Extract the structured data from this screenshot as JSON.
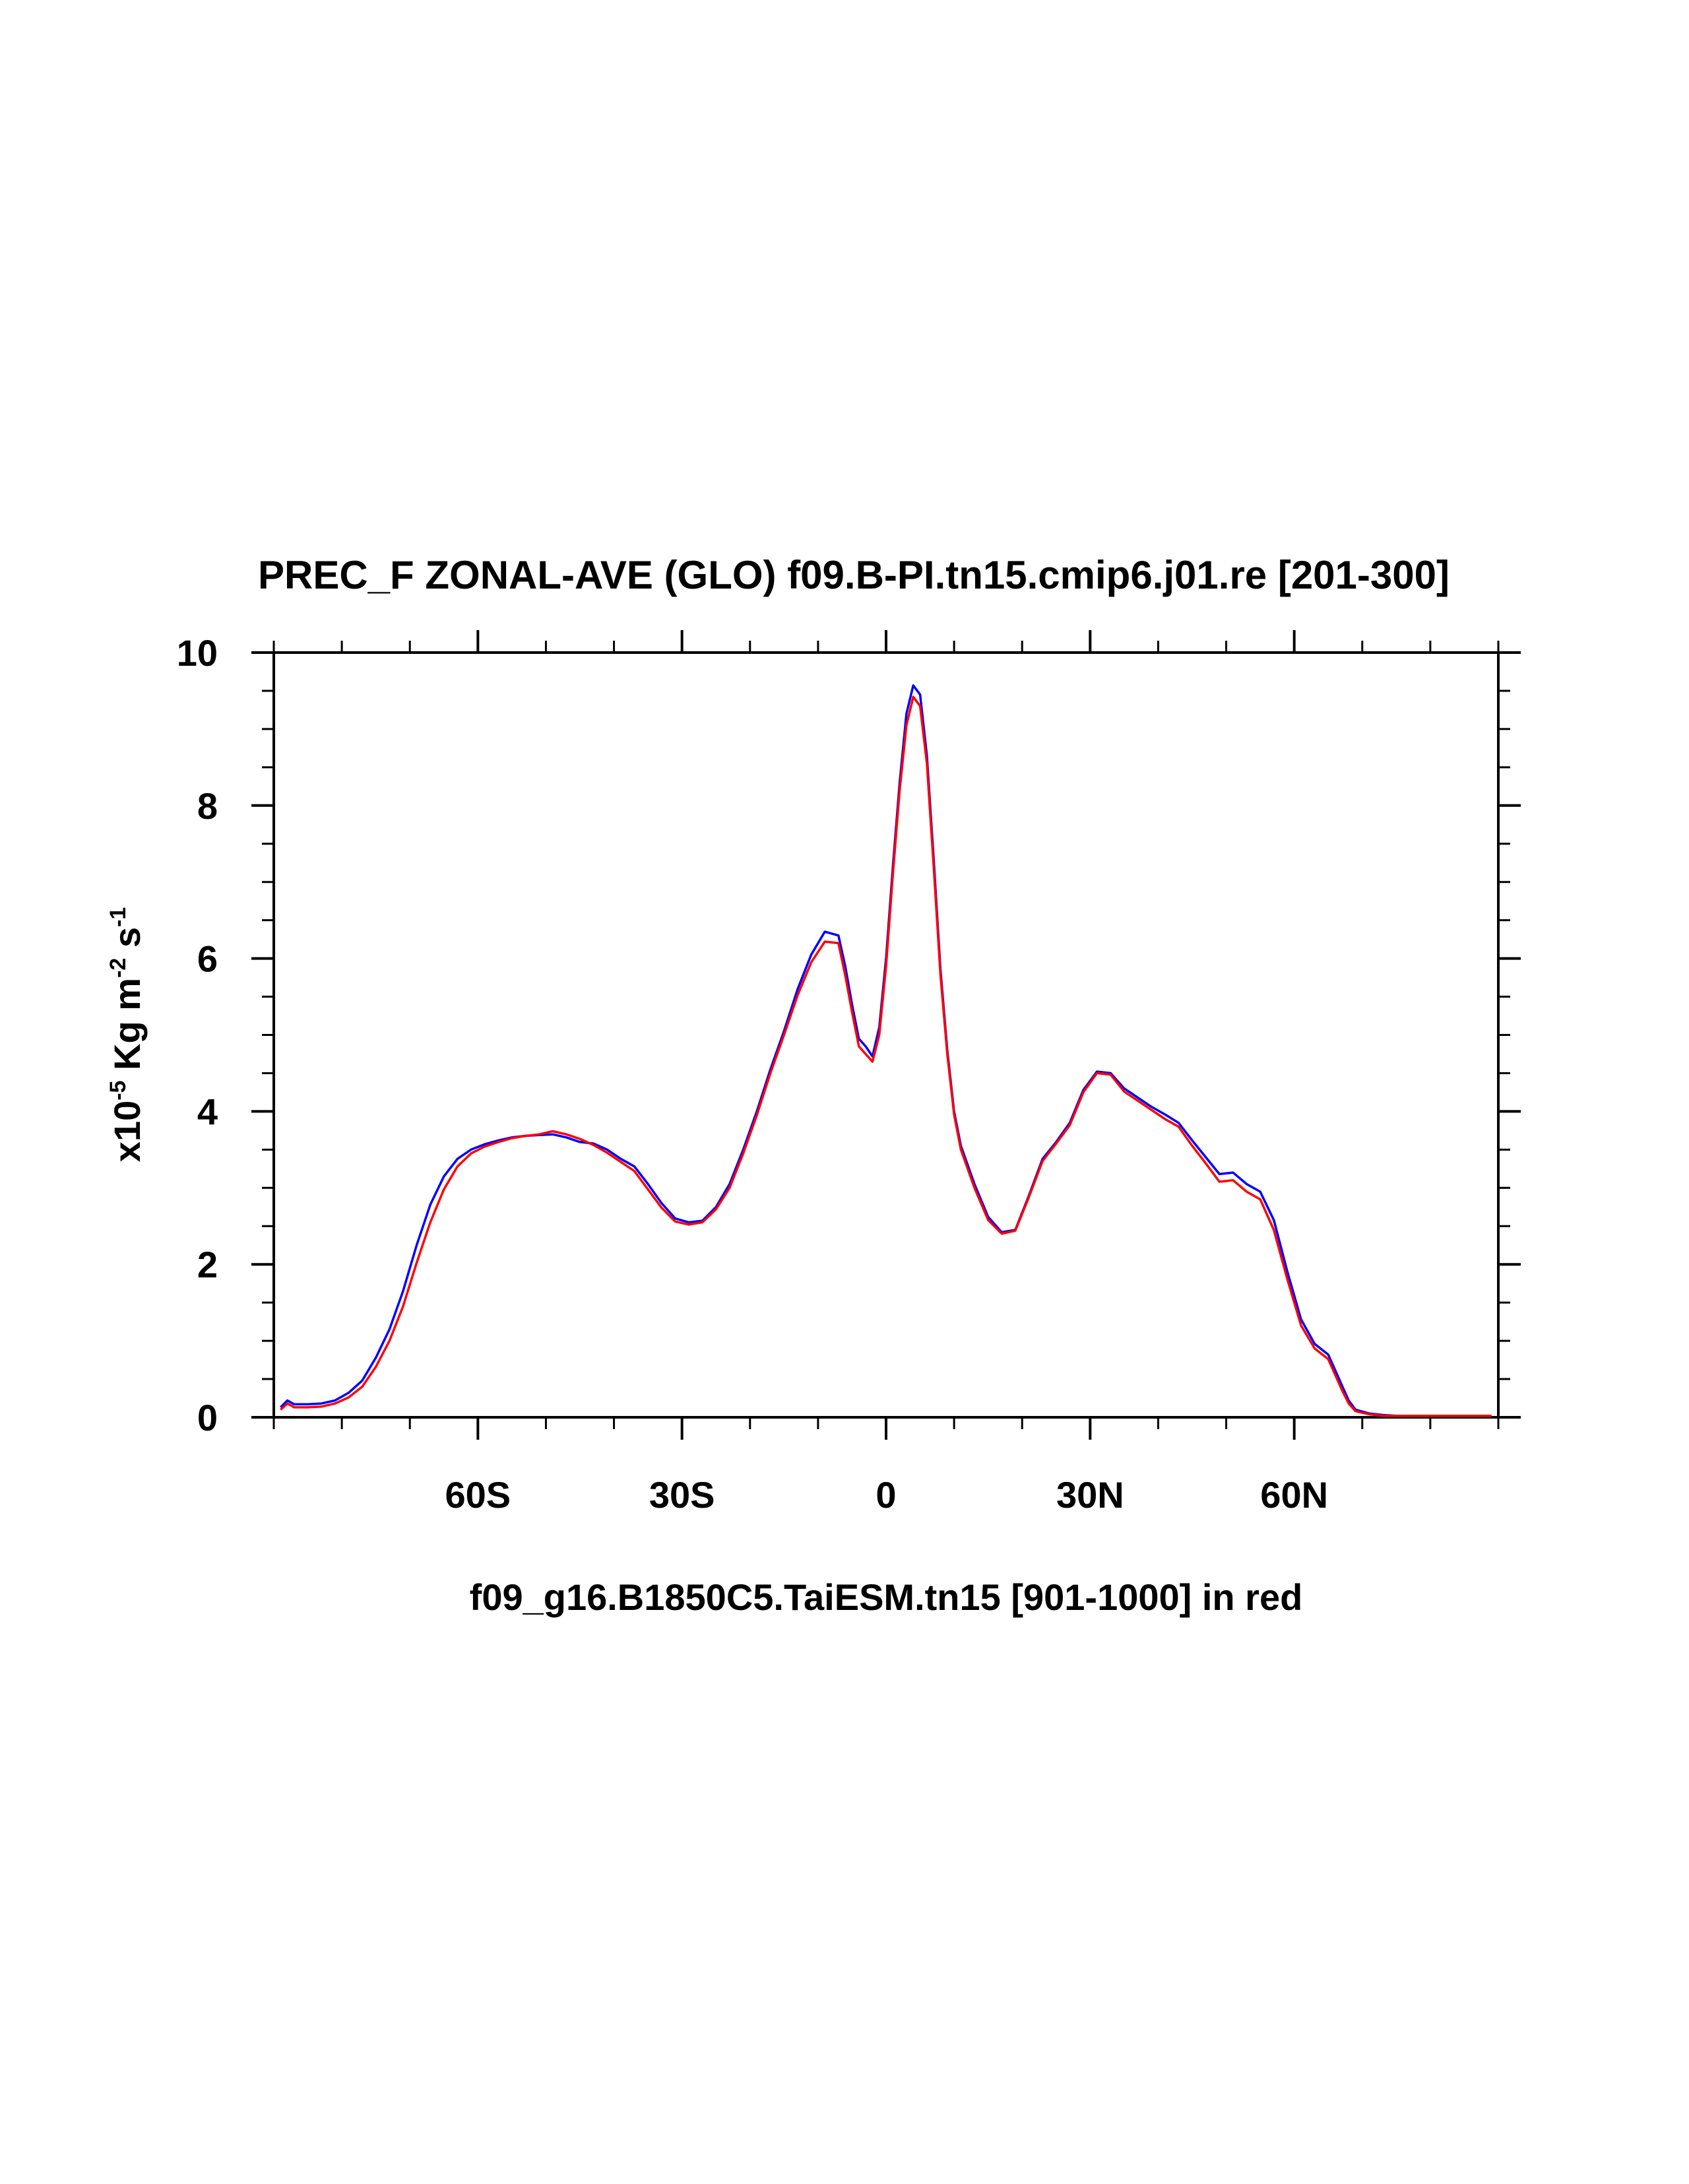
{
  "chart_data": {
    "type": "line",
    "title": "PREC_F ZONAL-AVE (GLO) f09.B-PI.tn15.cmip6.j01.re [201-300]",
    "xlabel": "f09_g16.B1850C5.TaiESM.tn15 [901-1000] in red",
    "ylabel": {
      "prefix": "x10",
      "exp1": "-5",
      "mid": " Kg m",
      "exp2": "-2",
      "mid2": " s",
      "exp3": "-1"
    },
    "xlim": [
      -90,
      90
    ],
    "ylim": [
      0,
      10
    ],
    "x_ticks": [
      {
        "value": -60,
        "label": "60S"
      },
      {
        "value": -30,
        "label": "30S"
      },
      {
        "value": 0,
        "label": "0"
      },
      {
        "value": 30,
        "label": "30N"
      },
      {
        "value": 60,
        "label": "60N"
      }
    ],
    "y_ticks": [
      {
        "value": 0,
        "label": "0"
      },
      {
        "value": 2,
        "label": "2"
      },
      {
        "value": 4,
        "label": "4"
      },
      {
        "value": 6,
        "label": "6"
      },
      {
        "value": 8,
        "label": "8"
      },
      {
        "value": 10,
        "label": "10"
      }
    ],
    "grid": false,
    "series": [
      {
        "color": "#0000ff",
        "x": [
          -89,
          -88,
          -87,
          -85,
          -83,
          -81,
          -79,
          -77,
          -75,
          -73,
          -71,
          -69,
          -67,
          -65,
          -63,
          -61,
          -59,
          -57,
          -55,
          -53,
          -51,
          -49,
          -47,
          -45,
          -43,
          -41,
          -39,
          -37,
          -35,
          -33,
          -31,
          -29,
          -27,
          -25,
          -23,
          -21,
          -19,
          -17,
          -15,
          -13,
          -11,
          -9,
          -7,
          -6,
          -5,
          -4,
          -3,
          -2,
          -1,
          0,
          1,
          2,
          3,
          4,
          5,
          6,
          7,
          8,
          9,
          10,
          11,
          12,
          13,
          15,
          17,
          19,
          21,
          23,
          25,
          27,
          29,
          31,
          33,
          35,
          37,
          39,
          41,
          43,
          45,
          47,
          49,
          51,
          53,
          55,
          57,
          59,
          61,
          63,
          65,
          66,
          67,
          68,
          69,
          71,
          73,
          75,
          77,
          79,
          81,
          83,
          85,
          87,
          89
        ],
        "y": [
          0.13,
          0.22,
          0.17,
          0.17,
          0.18,
          0.22,
          0.32,
          0.48,
          0.78,
          1.15,
          1.65,
          2.25,
          2.78,
          3.15,
          3.38,
          3.5,
          3.57,
          3.62,
          3.66,
          3.68,
          3.69,
          3.7,
          3.66,
          3.6,
          3.58,
          3.5,
          3.38,
          3.28,
          3.05,
          2.8,
          2.6,
          2.55,
          2.57,
          2.75,
          3.05,
          3.5,
          4.0,
          4.55,
          5.05,
          5.6,
          6.05,
          6.35,
          6.3,
          5.9,
          5.4,
          4.95,
          4.85,
          4.72,
          5.1,
          6.0,
          7.2,
          8.3,
          9.2,
          9.57,
          9.45,
          8.65,
          7.3,
          5.85,
          4.8,
          4.0,
          3.55,
          3.3,
          3.05,
          2.62,
          2.42,
          2.45,
          2.9,
          3.38,
          3.6,
          3.85,
          4.28,
          4.52,
          4.5,
          4.3,
          4.18,
          4.06,
          3.96,
          3.85,
          3.62,
          3.4,
          3.18,
          3.2,
          3.05,
          2.95,
          2.58,
          1.9,
          1.28,
          0.96,
          0.82,
          0.62,
          0.42,
          0.22,
          0.1,
          0.05,
          0.03,
          0.02,
          0.02,
          0.02,
          0.02,
          0.02,
          0.02,
          0.02,
          0.02
        ]
      },
      {
        "color": "#ff0000",
        "x": [
          -89,
          -88,
          -87,
          -85,
          -83,
          -81,
          -79,
          -77,
          -75,
          -73,
          -71,
          -69,
          -67,
          -65,
          -63,
          -61,
          -59,
          -57,
          -55,
          -53,
          -51,
          -49,
          -47,
          -45,
          -43,
          -41,
          -39,
          -37,
          -35,
          -33,
          -31,
          -29,
          -27,
          -25,
          -23,
          -21,
          -19,
          -17,
          -15,
          -13,
          -11,
          -9,
          -7,
          -6,
          -5,
          -4,
          -3,
          -2,
          -1,
          0,
          1,
          2,
          3,
          4,
          5,
          6,
          7,
          8,
          9,
          10,
          11,
          12,
          13,
          15,
          17,
          19,
          21,
          23,
          25,
          27,
          29,
          31,
          33,
          35,
          37,
          39,
          41,
          43,
          45,
          47,
          49,
          51,
          53,
          55,
          57,
          59,
          61,
          63,
          65,
          66,
          67,
          68,
          69,
          71,
          73,
          75,
          77,
          79,
          81,
          83,
          85,
          87,
          89
        ],
        "y": [
          0.1,
          0.18,
          0.13,
          0.13,
          0.14,
          0.18,
          0.26,
          0.4,
          0.66,
          1.0,
          1.45,
          2.02,
          2.55,
          2.98,
          3.28,
          3.45,
          3.54,
          3.6,
          3.65,
          3.68,
          3.7,
          3.74,
          3.7,
          3.64,
          3.56,
          3.46,
          3.34,
          3.22,
          2.98,
          2.74,
          2.56,
          2.52,
          2.55,
          2.72,
          3.0,
          3.45,
          3.95,
          4.5,
          5.0,
          5.52,
          5.95,
          6.22,
          6.2,
          5.78,
          5.3,
          4.85,
          4.75,
          4.65,
          5.0,
          5.9,
          7.1,
          8.2,
          9.05,
          9.42,
          9.3,
          8.55,
          7.2,
          5.78,
          4.75,
          3.96,
          3.5,
          3.25,
          3.0,
          2.58,
          2.4,
          2.44,
          2.88,
          3.35,
          3.58,
          3.82,
          4.25,
          4.5,
          4.48,
          4.26,
          4.14,
          4.02,
          3.9,
          3.8,
          3.55,
          3.32,
          3.08,
          3.1,
          2.95,
          2.85,
          2.45,
          1.8,
          1.2,
          0.9,
          0.76,
          0.56,
          0.36,
          0.18,
          0.08,
          0.04,
          0.02,
          0.02,
          0.02,
          0.02,
          0.02,
          0.02,
          0.02,
          0.02,
          0.02
        ]
      }
    ]
  }
}
